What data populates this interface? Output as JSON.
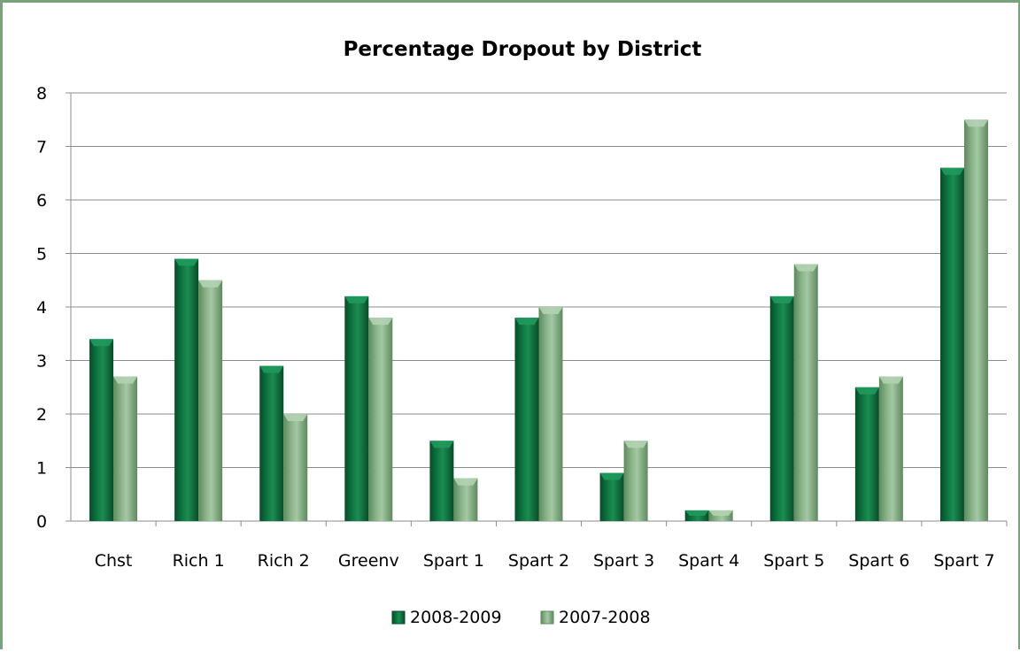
{
  "chart_data": {
    "type": "bar",
    "title": "Percentage Dropout by District",
    "xlabel": "",
    "ylabel": "",
    "categories": [
      "Chst",
      "Rich 1",
      "Rich 2",
      "Greenv",
      "Spart 1",
      "Spart 2",
      "Spart 3",
      "Spart 4",
      "Spart 5",
      "Spart 6",
      "Spart 7"
    ],
    "series": [
      {
        "name": "2008-2009",
        "values": [
          3.4,
          4.9,
          2.9,
          4.2,
          1.5,
          3.8,
          0.9,
          0.2,
          4.2,
          2.5,
          6.6
        ],
        "color": "#0b6b3a"
      },
      {
        "name": "2007-2008",
        "values": [
          2.7,
          4.5,
          2.0,
          3.8,
          0.8,
          4.0,
          1.5,
          0.2,
          4.8,
          2.7,
          7.5
        ],
        "color": "#7faa7f"
      }
    ],
    "ylim": [
      0,
      8
    ],
    "yticks": [
      "0",
      "1",
      "2",
      "3",
      "4",
      "5",
      "6",
      "7",
      "8"
    ],
    "grid": true,
    "legend_position": "bottom"
  }
}
